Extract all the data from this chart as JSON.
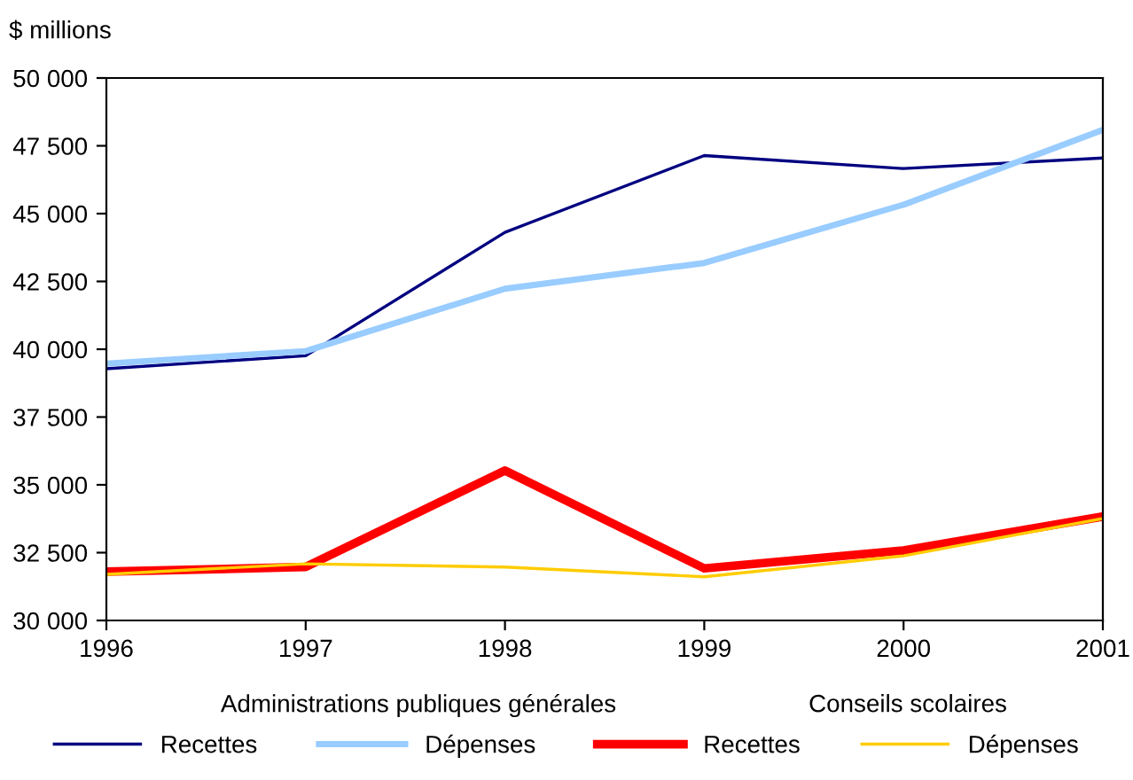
{
  "chart_data": {
    "type": "line",
    "ylabel": "$ millions",
    "x": [
      1996,
      1997,
      1998,
      1999,
      2000,
      2001
    ],
    "series": [
      {
        "name": "Recettes",
        "color": "#000080",
        "values": [
          39280,
          39760,
          44310,
          47140,
          46660,
          47050
        ]
      },
      {
        "name": "Dépenses",
        "color": "#99ccff",
        "values": [
          39470,
          39930,
          42230,
          43180,
          45330,
          48090
        ]
      },
      {
        "name": "Recettes",
        "color": "#ff0000",
        "values": [
          31800,
          31970,
          35530,
          31920,
          32580,
          33830
        ]
      },
      {
        "name": "Dépenses",
        "color": "#ffcc00",
        "values": [
          31700,
          32090,
          31970,
          31610,
          32380,
          33760
        ]
      }
    ],
    "annotations": [
      "Administrations publiques générales",
      "Conseils scolaires"
    ],
    "xlim": [
      1996,
      2001
    ],
    "xticks": [
      1996,
      1997,
      1998,
      1999,
      2000,
      2001
    ],
    "ylim": [
      30000,
      50000
    ],
    "yticks": [
      {
        "value": 30000,
        "label": "30 000"
      },
      {
        "value": 32500,
        "label": "32 500"
      },
      {
        "value": 35000,
        "label": "35 000"
      },
      {
        "value": 37500,
        "label": "37 500"
      },
      {
        "value": 40000,
        "label": "40 000"
      },
      {
        "value": 42500,
        "label": "42 500"
      },
      {
        "value": 45000,
        "label": "45 000"
      },
      {
        "value": 47500,
        "label": "47 500"
      },
      {
        "value": 50000,
        "label": "50 000"
      }
    ],
    "grid": false,
    "legend": "bottom",
    "marker": "none",
    "line_style": "solid"
  }
}
